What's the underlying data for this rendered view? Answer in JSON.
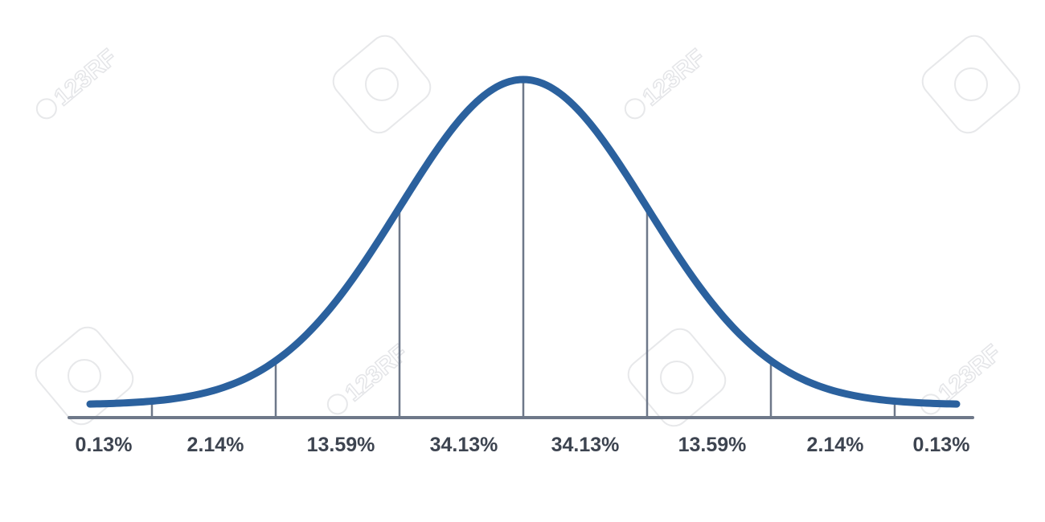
{
  "chart_data": {
    "type": "area",
    "title": "",
    "xlabel": "",
    "ylabel": "",
    "distribution": "normal",
    "mean": 0,
    "std": 1,
    "xlim": [
      -3.5,
      3.5
    ],
    "boundaries": [
      -3,
      -2,
      -1,
      0,
      1,
      2,
      3
    ],
    "segments": [
      {
        "from": -3.5,
        "to": -3,
        "label": "0.13%",
        "value": 0.13
      },
      {
        "from": -3,
        "to": -2,
        "label": "2.14%",
        "value": 2.14
      },
      {
        "from": -2,
        "to": -1,
        "label": "13.59%",
        "value": 13.59
      },
      {
        "from": -1,
        "to": 0,
        "label": "34.13%",
        "value": 34.13
      },
      {
        "from": 0,
        "to": 1,
        "label": "34.13%",
        "value": 34.13
      },
      {
        "from": 1,
        "to": 2,
        "label": "13.59%",
        "value": 13.59
      },
      {
        "from": 2,
        "to": 3,
        "label": "2.14%",
        "value": 2.14
      },
      {
        "from": 3,
        "to": 3.5,
        "label": "0.13%",
        "value": 0.13
      }
    ],
    "grid": false,
    "legend": "none",
    "colors": {
      "curve": "#2b619e",
      "dividers": "#6e7889",
      "baseline": "#6e7889",
      "labels": "#3d4450"
    }
  },
  "watermark": "123RF"
}
